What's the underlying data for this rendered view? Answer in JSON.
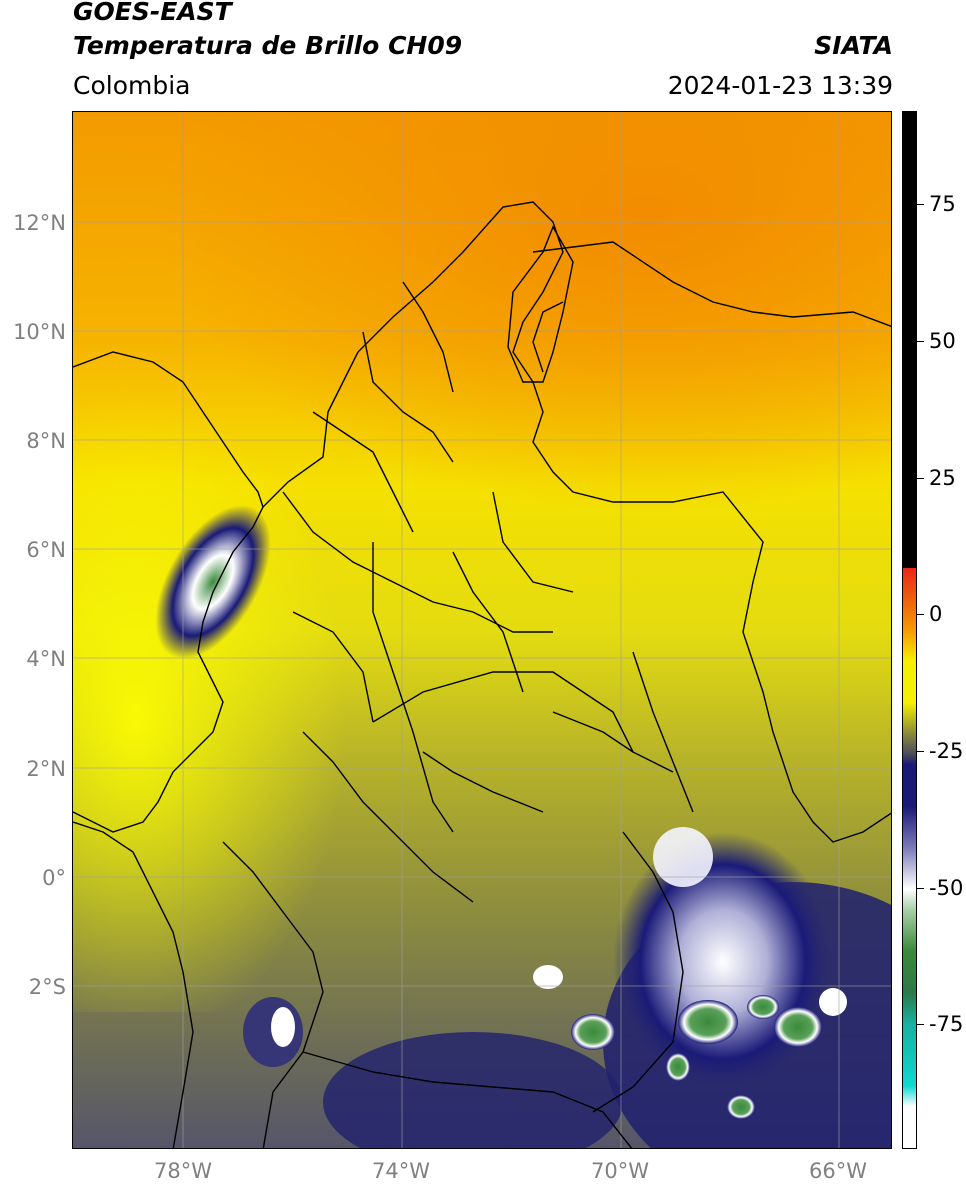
{
  "header": {
    "satellite": "GOES-EAST",
    "product": "Temperatura de Brillo CH09",
    "region": "Colombia",
    "org": "SIATA",
    "datetime": "2024-01-23 13:39"
  },
  "map": {
    "lat_labels": [
      "12°N",
      "10°N",
      "8°N",
      "6°N",
      "4°N",
      "2°N",
      "0°",
      "2°S"
    ],
    "lon_labels": [
      "78°W",
      "74°W",
      "70°W",
      "66°W"
    ],
    "lon_range": [
      -80,
      -65
    ],
    "lat_range": [
      -5,
      14
    ]
  },
  "colorbar": {
    "ticks": [
      "75",
      "50",
      "25",
      "0",
      "-25",
      "-50",
      "-75"
    ],
    "range": [
      -95,
      90
    ],
    "colors": {
      "warm_black": "#000000",
      "red": "#e8261a",
      "orange": "#f59a00",
      "yellow": "#f5f000",
      "olive": "#8a8a3a",
      "navy": "#1a1a78",
      "white": "#ffffff",
      "green": "#3a8a3a",
      "cyan": "#10d8d0"
    }
  }
}
